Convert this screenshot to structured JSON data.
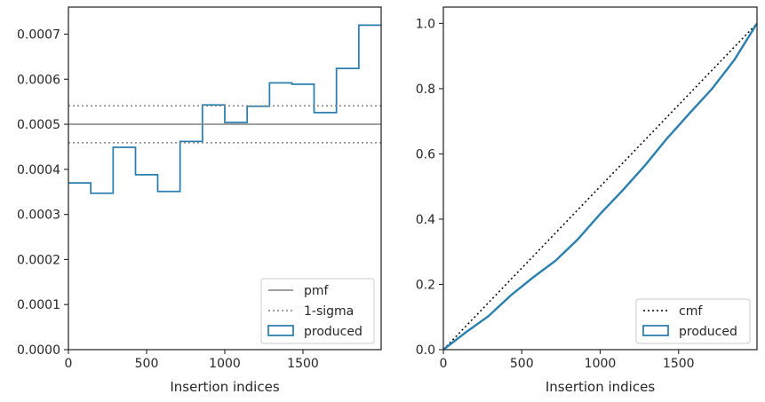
{
  "chart_data": [
    {
      "type": "step",
      "xlabel": "Insertion indices",
      "ylabel": "",
      "xlim": [
        0,
        2000
      ],
      "ylim": [
        0,
        0.00076
      ],
      "xticks": [
        0,
        500,
        1000,
        1500
      ],
      "xtick_labels": [
        "0",
        "500",
        "1000",
        "1500"
      ],
      "yticks": [
        0,
        0.0001,
        0.0002,
        0.0003,
        0.0004,
        0.0005,
        0.0006,
        0.0007
      ],
      "ytick_labels": [
        "0.0000",
        "0.0001",
        "0.0002",
        "0.0003",
        "0.0004",
        "0.0005",
        "0.0006",
        "0.0007"
      ],
      "bin_edges": [
        0,
        143,
        286,
        429,
        571,
        714,
        857,
        1000,
        1143,
        1286,
        1429,
        1571,
        1714,
        1857,
        2000
      ],
      "series": [
        {
          "name": "produced",
          "kind": "histogram-step",
          "color": "#2a7fae",
          "values": [
            0.00037,
            0.000347,
            0.000449,
            0.000388,
            0.000351,
            0.000462,
            0.000543,
            0.000504,
            0.00054,
            0.000592,
            0.000589,
            0.000526,
            0.000624,
            0.00072
          ]
        },
        {
          "name": "pmf",
          "kind": "hline",
          "color": "#808080",
          "style": "solid",
          "y": 0.0005
        },
        {
          "name": "1-sigma",
          "kind": "hline",
          "color": "#808080",
          "style": "dotted",
          "y": [
            0.000459,
            0.000541
          ]
        }
      ],
      "legend": {
        "position": "lower-right",
        "entries": [
          {
            "label": "pmf",
            "marker": "line",
            "color": "#808080",
            "style": "solid"
          },
          {
            "label": "1-sigma",
            "marker": "line",
            "color": "#808080",
            "style": "dotted"
          },
          {
            "label": "produced",
            "marker": "patch",
            "color": "#2a7fae"
          }
        ]
      },
      "grid": false
    },
    {
      "type": "line",
      "xlabel": "Insertion indices",
      "ylabel": "",
      "xlim": [
        0,
        2000
      ],
      "ylim": [
        0,
        1.05
      ],
      "xticks": [
        0,
        500,
        1000,
        1500
      ],
      "xtick_labels": [
        "0",
        "500",
        "1000",
        "1500"
      ],
      "yticks": [
        0,
        0.2,
        0.4,
        0.6,
        0.8,
        1.0
      ],
      "ytick_labels": [
        "0.0",
        "0.2",
        "0.4",
        "0.6",
        "0.8",
        "1.0"
      ],
      "series": [
        {
          "name": "cmf",
          "color": "#000000",
          "style": "dotted",
          "x": [
            0,
            2000
          ],
          "y": [
            0,
            1.0
          ]
        },
        {
          "name": "produced",
          "color": "#2a7fae",
          "style": "solid",
          "x": [
            0,
            143,
            286,
            429,
            571,
            714,
            857,
            1000,
            1143,
            1286,
            1429,
            1571,
            1714,
            1857,
            2000
          ],
          "y": [
            0,
            0.053,
            0.102,
            0.166,
            0.221,
            0.272,
            0.338,
            0.416,
            0.488,
            0.565,
            0.649,
            0.725,
            0.8,
            0.889,
            1.0
          ]
        }
      ],
      "legend": {
        "position": "lower-right",
        "entries": [
          {
            "label": "cmf",
            "marker": "line",
            "color": "#000000",
            "style": "dotted"
          },
          {
            "label": "produced",
            "marker": "patch",
            "color": "#2a7fae"
          }
        ]
      },
      "grid": false
    }
  ]
}
